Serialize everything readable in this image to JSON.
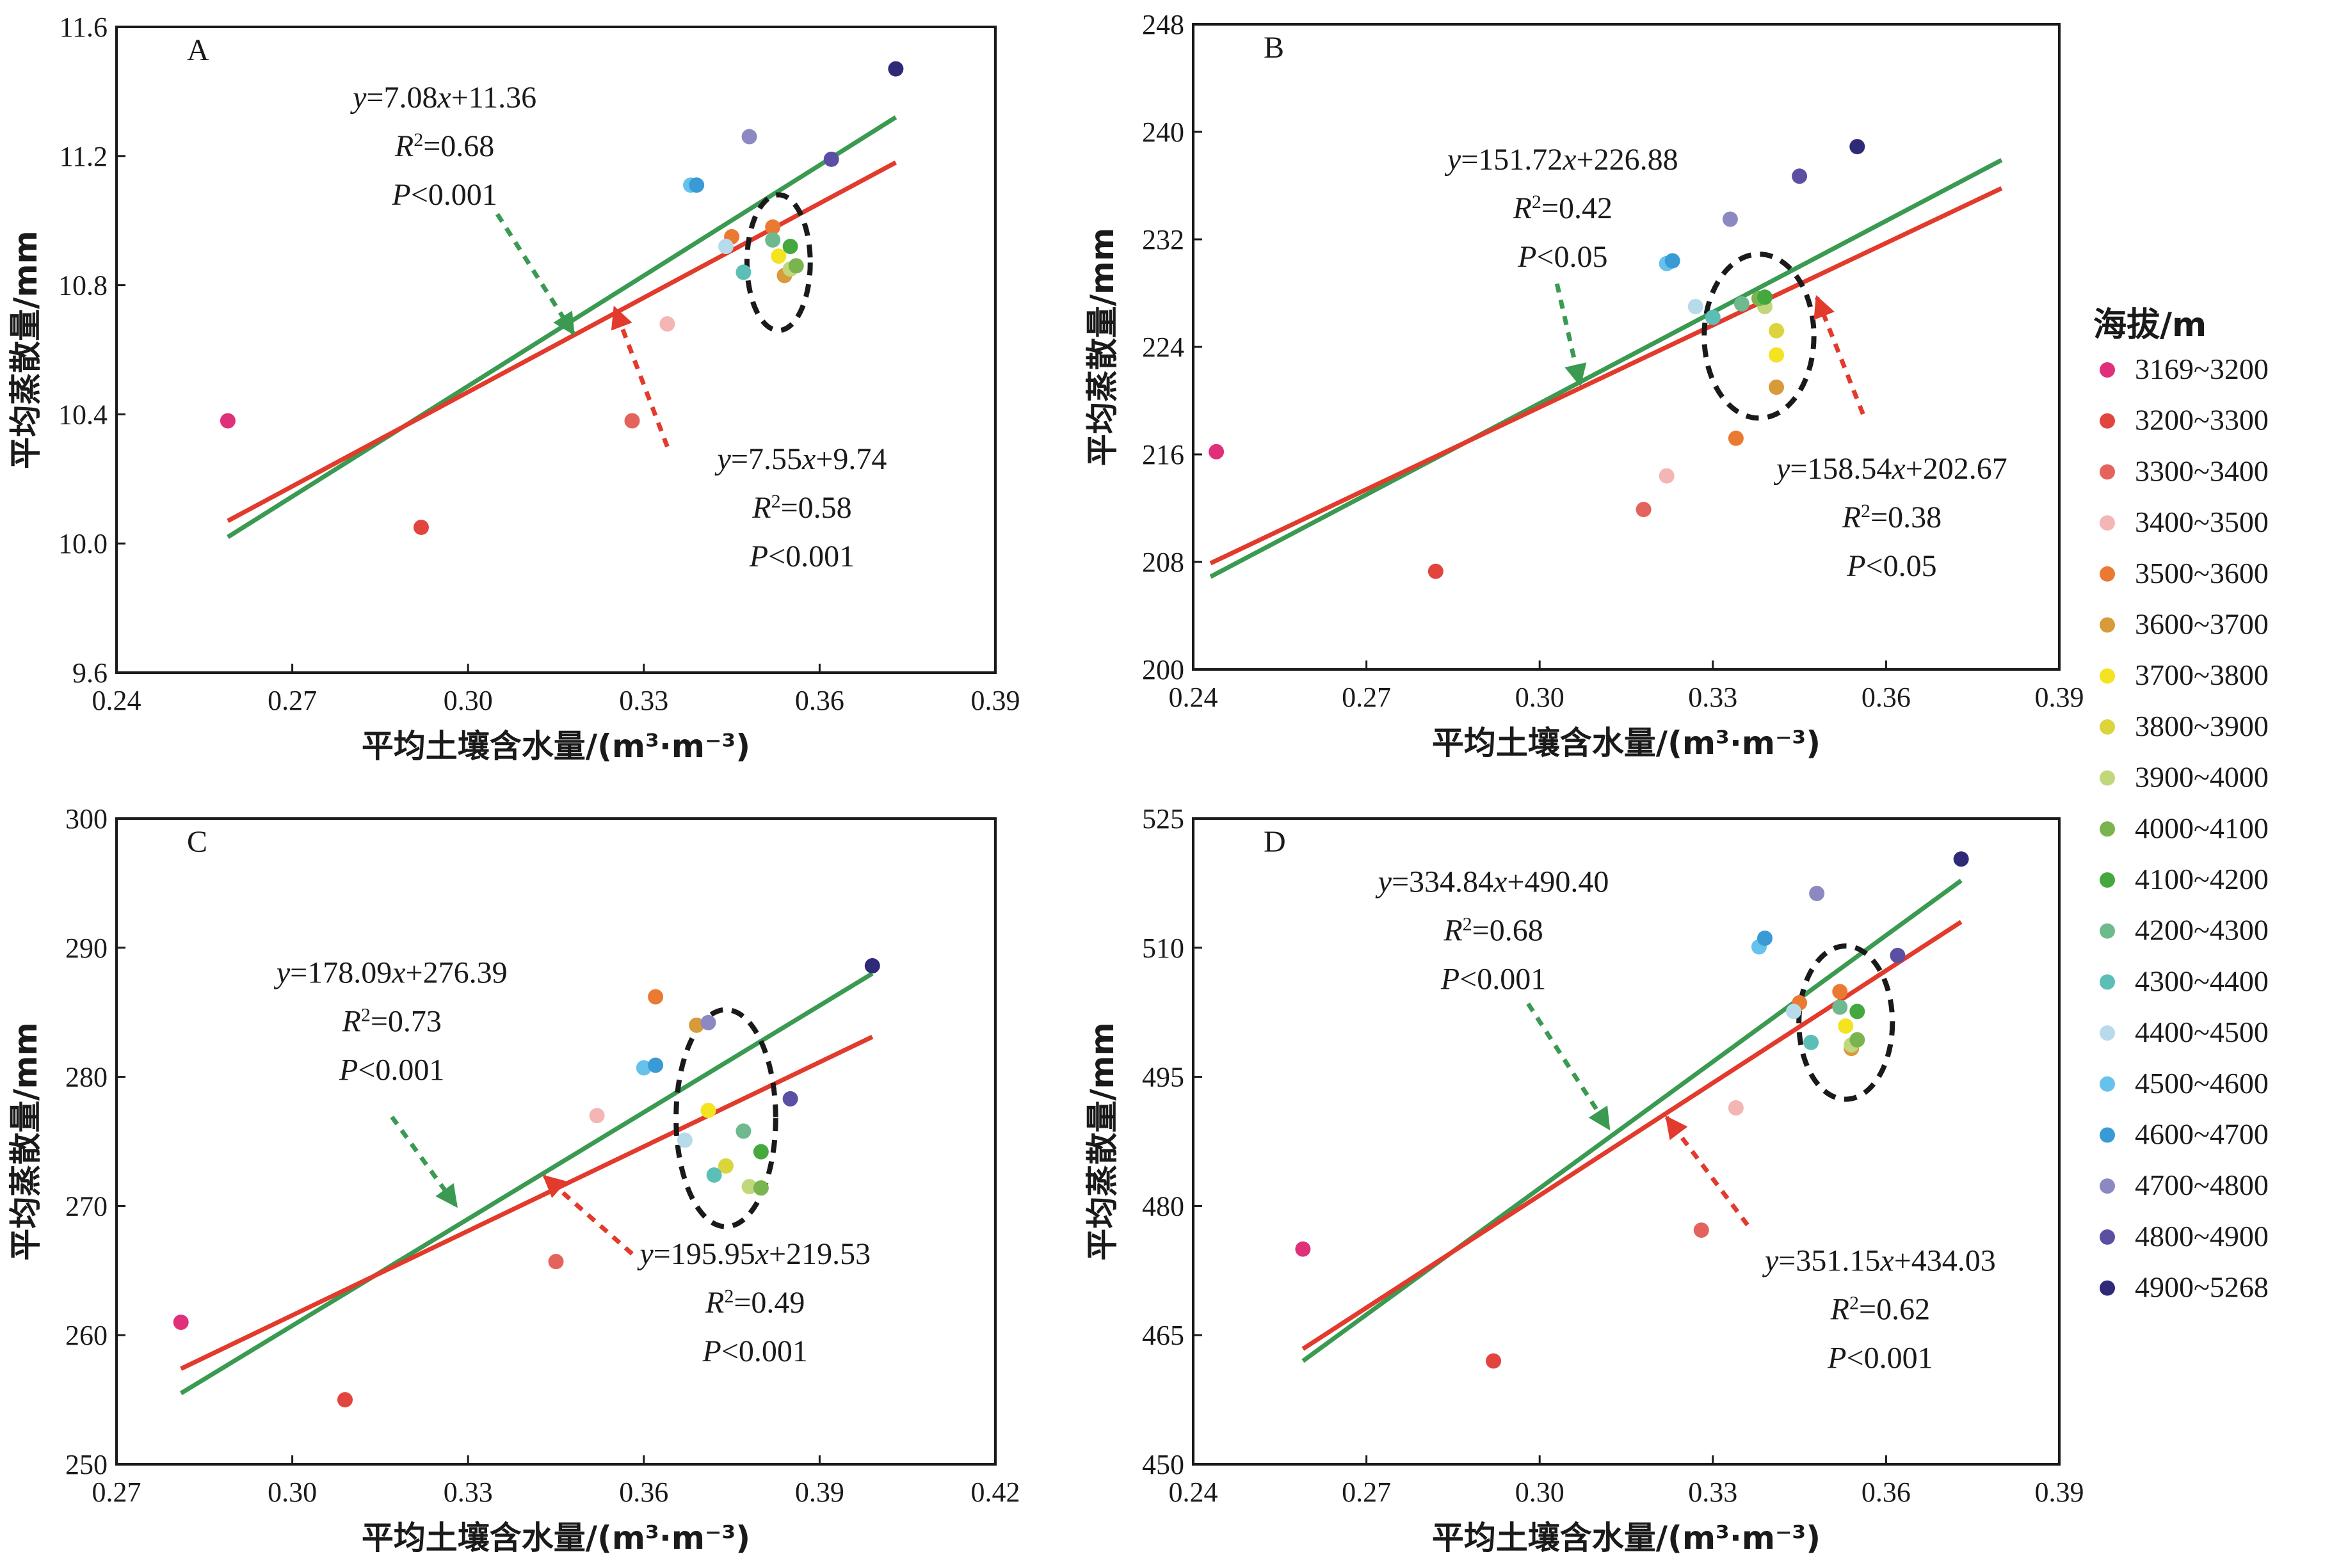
{
  "legend": {
    "title": "海拔/m",
    "entries": [
      {
        "label": "3169~3200",
        "color": "#e0307a"
      },
      {
        "label": "3200~3300",
        "color": "#e2453d"
      },
      {
        "label": "3300~3400",
        "color": "#e4635d"
      },
      {
        "label": "3400~3500",
        "color": "#f4b6b4"
      },
      {
        "label": "3500~3600",
        "color": "#ea7a32"
      },
      {
        "label": "3600~3700",
        "color": "#d99a3a"
      },
      {
        "label": "3700~3800",
        "color": "#f3e321"
      },
      {
        "label": "3800~3900",
        "color": "#dcd43c"
      },
      {
        "label": "3900~4000",
        "color": "#c1d77c"
      },
      {
        "label": "4000~4100",
        "color": "#79b44f"
      },
      {
        "label": "4100~4200",
        "color": "#45a83f"
      },
      {
        "label": "4200~4300",
        "color": "#6fb98f"
      },
      {
        "label": "4300~4400",
        "color": "#5bbfb7"
      },
      {
        "label": "4400~4500",
        "color": "#b7dbea"
      },
      {
        "label": "4500~4600",
        "color": "#66c1ec"
      },
      {
        "label": "4600~4700",
        "color": "#3a9ad6"
      },
      {
        "label": "4700~4800",
        "color": "#8c89c2"
      },
      {
        "label": "4800~4900",
        "color": "#5a4fa2"
      },
      {
        "label": "4900~5268",
        "color": "#2f2a78"
      }
    ]
  },
  "colors": {
    "fit_total": "#3a9a52",
    "fit_subset": "#e23a2c",
    "axis": "#1a1a1a",
    "ellipse": "#1a1a1a"
  },
  "chart_data": [
    {
      "type": "scatter",
      "panel": "A",
      "xlabel": "平均土壤含水量/(m³·m⁻³)",
      "ylabel": "平均蒸散量/mm",
      "xlim": [
        0.24,
        0.39
      ],
      "ylim": [
        9.6,
        11.6
      ],
      "xticks": [
        0.24,
        0.27,
        0.3,
        0.33,
        0.36,
        0.39
      ],
      "xtick_labels": [
        "0.24",
        "0.27",
        "0.30",
        "0.33",
        "0.36",
        "0.39"
      ],
      "yticks": [
        9.6,
        10.0,
        10.4,
        10.8,
        11.2,
        11.6
      ],
      "ytick_labels": [
        "9.6",
        "10.0",
        "10.4",
        "10.8",
        "11.2",
        "11.6"
      ],
      "points": [
        {
          "x": 0.259,
          "y": 10.38,
          "c": 0
        },
        {
          "x": 0.292,
          "y": 10.05,
          "c": 1
        },
        {
          "x": 0.328,
          "y": 10.38,
          "c": 2
        },
        {
          "x": 0.334,
          "y": 10.68,
          "c": 3
        },
        {
          "x": 0.345,
          "y": 10.95,
          "c": 4
        },
        {
          "x": 0.352,
          "y": 10.98,
          "c": 4
        },
        {
          "x": 0.354,
          "y": 10.83,
          "c": 5
        },
        {
          "x": 0.353,
          "y": 10.89,
          "c": 6
        },
        {
          "x": 0.355,
          "y": 10.85,
          "c": 8
        },
        {
          "x": 0.356,
          "y": 10.86,
          "c": 9
        },
        {
          "x": 0.355,
          "y": 10.92,
          "c": 10
        },
        {
          "x": 0.352,
          "y": 10.94,
          "c": 11
        },
        {
          "x": 0.347,
          "y": 10.84,
          "c": 12
        },
        {
          "x": 0.344,
          "y": 10.92,
          "c": 13
        },
        {
          "x": 0.338,
          "y": 11.11,
          "c": 14
        },
        {
          "x": 0.339,
          "y": 11.11,
          "c": 15
        },
        {
          "x": 0.348,
          "y": 11.26,
          "c": 16
        },
        {
          "x": 0.362,
          "y": 11.19,
          "c": 17
        },
        {
          "x": 0.373,
          "y": 11.47,
          "c": 18
        }
      ],
      "fit_green": {
        "x": [
          0.259,
          0.373
        ],
        "y": [
          10.02,
          11.32
        ]
      },
      "fit_red": {
        "x": [
          0.259,
          0.373
        ],
        "y": [
          10.07,
          11.18
        ]
      },
      "ellipse": {
        "cx": 0.353,
        "cy": 10.87,
        "rx": 0.0054,
        "ry": 0.21
      },
      "equation_green": {
        "eq": "y=7.08x+11.36",
        "r2": "0.68",
        "p": "P<0.001",
        "anchor": [
          0.296,
          11.35
        ]
      },
      "equation_red": {
        "eq": "y=7.55x+9.74",
        "r2": "0.58",
        "p": "P<0.001",
        "anchor": [
          0.357,
          10.23
        ]
      },
      "arrow_green": {
        "from": [
          0.305,
          11.02
        ],
        "to": [
          0.318,
          10.65
        ]
      },
      "arrow_red": {
        "from": [
          0.334,
          10.3
        ],
        "to": [
          0.325,
          10.73
        ]
      }
    },
    {
      "type": "scatter",
      "panel": "B",
      "xlabel": "平均土壤含水量/(m³·m⁻³)",
      "ylabel": "平均蒸散量/mm",
      "xlim": [
        0.24,
        0.39
      ],
      "ylim": [
        200,
        248
      ],
      "xticks": [
        0.24,
        0.27,
        0.3,
        0.33,
        0.36,
        0.39
      ],
      "xtick_labels": [
        "0.24",
        "0.27",
        "0.30",
        "0.33",
        "0.36",
        "0.39"
      ],
      "yticks": [
        200,
        208,
        216,
        224,
        232,
        240,
        248
      ],
      "ytick_labels": [
        "200",
        "208",
        "216",
        "224",
        "232",
        "240",
        "248"
      ],
      "points": [
        {
          "x": 0.244,
          "y": 216.2,
          "c": 0
        },
        {
          "x": 0.282,
          "y": 207.3,
          "c": 1
        },
        {
          "x": 0.318,
          "y": 211.9,
          "c": 2
        },
        {
          "x": 0.322,
          "y": 214.4,
          "c": 3
        },
        {
          "x": 0.334,
          "y": 217.2,
          "c": 4
        },
        {
          "x": 0.341,
          "y": 221.0,
          "c": 5
        },
        {
          "x": 0.341,
          "y": 223.4,
          "c": 6
        },
        {
          "x": 0.341,
          "y": 225.2,
          "c": 7
        },
        {
          "x": 0.339,
          "y": 227.0,
          "c": 8
        },
        {
          "x": 0.338,
          "y": 227.6,
          "c": 9
        },
        {
          "x": 0.339,
          "y": 227.7,
          "c": 10
        },
        {
          "x": 0.335,
          "y": 227.2,
          "c": 11
        },
        {
          "x": 0.33,
          "y": 226.2,
          "c": 12
        },
        {
          "x": 0.327,
          "y": 227.0,
          "c": 13
        },
        {
          "x": 0.322,
          "y": 230.2,
          "c": 14
        },
        {
          "x": 0.323,
          "y": 230.4,
          "c": 15
        },
        {
          "x": 0.333,
          "y": 233.5,
          "c": 16
        },
        {
          "x": 0.345,
          "y": 236.7,
          "c": 17
        },
        {
          "x": 0.355,
          "y": 238.9,
          "c": 18
        }
      ],
      "fit_green": {
        "x": [
          0.243,
          0.38
        ],
        "y": [
          206.9,
          237.9
        ]
      },
      "fit_red": {
        "x": [
          0.243,
          0.38
        ],
        "y": [
          207.9,
          235.8
        ]
      },
      "ellipse": {
        "cx": 0.338,
        "cy": 224.8,
        "rx": 0.0095,
        "ry": 6.1
      },
      "equation_green": {
        "eq": "y=151.72x+226.88",
        "r2": "0.42",
        "p": "P<0.05",
        "anchor": [
          0.304,
          237.2
        ]
      },
      "equation_red": {
        "eq": "y=158.54x+202.67",
        "r2": "0.38",
        "p": "P<0.05",
        "anchor": [
          0.361,
          214.2
        ]
      },
      "arrow_green": {
        "from": [
          0.303,
          228.7
        ],
        "to": [
          0.307,
          221.2
        ]
      },
      "arrow_red": {
        "from": [
          0.356,
          219.0
        ],
        "to": [
          0.348,
          227.7
        ]
      }
    },
    {
      "type": "scatter",
      "panel": "C",
      "xlabel": "平均土壤含水量/(m³·m⁻³)",
      "ylabel": "平均蒸散量/mm",
      "xlim": [
        0.27,
        0.42
      ],
      "ylim": [
        250,
        300
      ],
      "xticks": [
        0.27,
        0.3,
        0.33,
        0.36,
        0.39,
        0.42
      ],
      "xtick_labels": [
        "0.27",
        "0.30",
        "0.33",
        "0.36",
        "0.39",
        "0.42"
      ],
      "yticks": [
        250,
        260,
        270,
        280,
        290,
        300
      ],
      "ytick_labels": [
        "250",
        "260",
        "270",
        "280",
        "290",
        "300"
      ],
      "points": [
        {
          "x": 0.281,
          "y": 261.0,
          "c": 0
        },
        {
          "x": 0.309,
          "y": 255.0,
          "c": 1
        },
        {
          "x": 0.345,
          "y": 265.7,
          "c": 2
        },
        {
          "x": 0.352,
          "y": 277.0,
          "c": 3
        },
        {
          "x": 0.362,
          "y": 286.2,
          "c": 4
        },
        {
          "x": 0.369,
          "y": 284.0,
          "c": 5
        },
        {
          "x": 0.371,
          "y": 277.4,
          "c": 6
        },
        {
          "x": 0.374,
          "y": 273.1,
          "c": 7
        },
        {
          "x": 0.378,
          "y": 271.5,
          "c": 8
        },
        {
          "x": 0.38,
          "y": 271.4,
          "c": 9
        },
        {
          "x": 0.38,
          "y": 274.2,
          "c": 10
        },
        {
          "x": 0.377,
          "y": 275.8,
          "c": 11
        },
        {
          "x": 0.372,
          "y": 272.4,
          "c": 12
        },
        {
          "x": 0.367,
          "y": 275.1,
          "c": 13
        },
        {
          "x": 0.36,
          "y": 280.7,
          "c": 14
        },
        {
          "x": 0.362,
          "y": 280.9,
          "c": 15
        },
        {
          "x": 0.371,
          "y": 284.2,
          "c": 16
        },
        {
          "x": 0.385,
          "y": 278.3,
          "c": 17
        },
        {
          "x": 0.399,
          "y": 288.6,
          "c": 18
        }
      ],
      "fit_green": {
        "x": [
          0.281,
          0.399
        ],
        "y": [
          255.5,
          288.0
        ]
      },
      "fit_red": {
        "x": [
          0.281,
          0.399
        ],
        "y": [
          257.4,
          283.1
        ]
      },
      "ellipse": {
        "cx": 0.374,
        "cy": 276.8,
        "rx": 0.0085,
        "ry": 8.4
      },
      "equation_green": {
        "eq": "y=178.09x+276.39",
        "r2": "0.73",
        "p": "P<0.001",
        "anchor": [
          0.317,
          287.3
        ]
      },
      "equation_red": {
        "eq": "y=195.95x+219.53",
        "r2": "0.49",
        "p": "P<0.001",
        "anchor": [
          0.379,
          265.5
        ]
      },
      "arrow_green": {
        "from": [
          0.317,
          276.9
        ],
        "to": [
          0.328,
          270.0
        ]
      },
      "arrow_red": {
        "from": [
          0.358,
          266.3
        ],
        "to": [
          0.343,
          272.3
        ]
      }
    },
    {
      "type": "scatter",
      "panel": "D",
      "xlabel": "平均土壤含水量/(m³·m⁻³)",
      "ylabel": "平均蒸散量/mm",
      "xlim": [
        0.24,
        0.39
      ],
      "ylim": [
        450,
        525
      ],
      "xticks": [
        0.24,
        0.27,
        0.3,
        0.33,
        0.36,
        0.39
      ],
      "xtick_labels": [
        "0.24",
        "0.27",
        "0.30",
        "0.33",
        "0.36",
        "0.39"
      ],
      "yticks": [
        450,
        465,
        480,
        495,
        510,
        525
      ],
      "ytick_labels": [
        "450",
        "465",
        "480",
        "495",
        "510",
        "525"
      ],
      "points": [
        {
          "x": 0.259,
          "y": 475.0,
          "c": 0
        },
        {
          "x": 0.292,
          "y": 462.0,
          "c": 1
        },
        {
          "x": 0.328,
          "y": 477.2,
          "c": 2
        },
        {
          "x": 0.334,
          "y": 491.4,
          "c": 3
        },
        {
          "x": 0.345,
          "y": 503.6,
          "c": 4
        },
        {
          "x": 0.352,
          "y": 504.9,
          "c": 4
        },
        {
          "x": 0.354,
          "y": 498.3,
          "c": 5
        },
        {
          "x": 0.353,
          "y": 500.9,
          "c": 6
        },
        {
          "x": 0.354,
          "y": 498.7,
          "c": 8
        },
        {
          "x": 0.355,
          "y": 499.3,
          "c": 9
        },
        {
          "x": 0.355,
          "y": 502.6,
          "c": 10
        },
        {
          "x": 0.352,
          "y": 503.1,
          "c": 11
        },
        {
          "x": 0.347,
          "y": 499.0,
          "c": 12
        },
        {
          "x": 0.344,
          "y": 502.6,
          "c": 13
        },
        {
          "x": 0.338,
          "y": 510.1,
          "c": 14
        },
        {
          "x": 0.339,
          "y": 511.1,
          "c": 15
        },
        {
          "x": 0.348,
          "y": 516.3,
          "c": 16
        },
        {
          "x": 0.362,
          "y": 509.1,
          "c": 17
        },
        {
          "x": 0.373,
          "y": 520.3,
          "c": 18
        }
      ],
      "fit_green": {
        "x": [
          0.259,
          0.373
        ],
        "y": [
          462.0,
          517.8
        ]
      },
      "fit_red": {
        "x": [
          0.259,
          0.373
        ],
        "y": [
          463.4,
          513.0
        ]
      },
      "ellipse": {
        "cx": 0.353,
        "cy": 501.3,
        "rx": 0.0081,
        "ry": 8.9
      },
      "equation_green": {
        "eq": "y=334.84x+490.40",
        "r2": "0.68",
        "p": "P<0.001",
        "anchor": [
          0.292,
          516.5
        ]
      },
      "equation_red": {
        "eq": "y=351.15x+434.03",
        "r2": "0.62",
        "p": "P<0.001",
        "anchor": [
          0.359,
          472.5
        ]
      },
      "arrow_green": {
        "from": [
          0.298,
          503.5
        ],
        "to": [
          0.312,
          489.0
        ]
      },
      "arrow_red": {
        "from": [
          0.336,
          477.8
        ],
        "to": [
          0.322,
          490.3
        ]
      }
    }
  ]
}
